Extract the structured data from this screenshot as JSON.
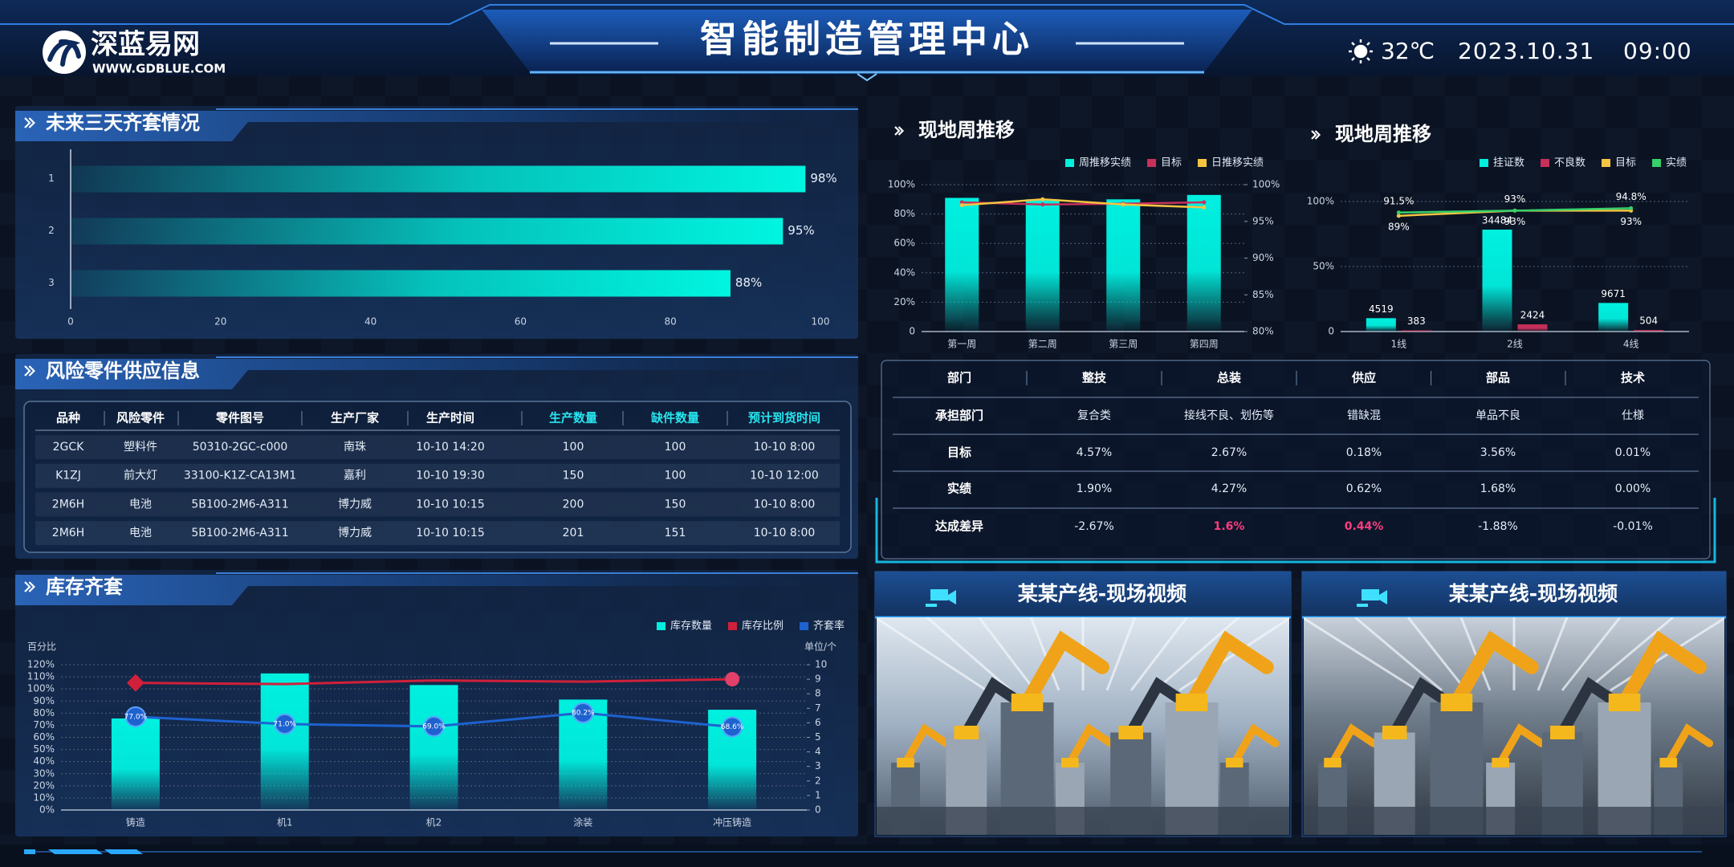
{
  "header": {
    "logo_name": "深蓝易网",
    "logo_url": "WWW.GDBLUE.COM",
    "title": "智能制造管理中心",
    "temperature": "32℃",
    "date": "2023.10.31",
    "time": "09:00"
  },
  "chart_data": [
    {
      "type": "hbar",
      "title": "未来三天齐套情况",
      "categories": [
        "1",
        "2",
        "3"
      ],
      "values": [
        98,
        95,
        88
      ],
      "value_labels": [
        "98%",
        "95%",
        "88%"
      ],
      "color": "#00f5e0",
      "xlim": [
        0,
        100
      ],
      "xticks": [
        0,
        20,
        40,
        60,
        80,
        100
      ]
    },
    {
      "type": "combo",
      "title": "现地周推移",
      "categories": [
        "第一周",
        "第二周",
        "第三周",
        "第四周"
      ],
      "series": [
        {
          "name": "周推移实绩",
          "type": "bar",
          "color": "#00f0e0",
          "values": [
            91,
            90,
            90,
            93
          ]
        },
        {
          "name": "目标",
          "type": "line",
          "axis": "y2",
          "color": "#c8305a",
          "values": [
            97.6,
            97.3,
            97.4,
            97.6
          ]
        },
        {
          "name": "日推移实绩",
          "type": "line",
          "axis": "y2",
          "color": "#f5c542",
          "values": [
            97.2,
            98.0,
            97.3,
            96.9
          ]
        }
      ],
      "ylim": [
        0,
        100
      ],
      "yticks": [
        0,
        {
          "value": 20,
          "label": "20%"
        },
        {
          "value": 40,
          "label": "40%"
        },
        {
          "value": 60,
          "label": "60%"
        },
        {
          "value": 80,
          "label": "80%"
        },
        {
          "value": 100,
          "label": "100%"
        }
      ],
      "y2lim": [
        80,
        100
      ],
      "y2ticks": [
        {
          "value": 80,
          "label": "80%"
        },
        {
          "value": 85,
          "label": "85%"
        },
        {
          "value": 90,
          "label": "90%"
        },
        {
          "value": 95,
          "label": "95%"
        },
        {
          "value": 100,
          "label": "100%"
        }
      ],
      "grid": true
    },
    {
      "type": "combo",
      "title": "现地周推移",
      "categories": [
        "1线",
        "2线",
        "4线"
      ],
      "series": [
        {
          "name": "挂证数",
          "type": "bar",
          "axis": "y2",
          "color": "#00f0e0",
          "values": [
            4519,
            34484,
            9671
          ]
        },
        {
          "name": "不良数",
          "type": "bar",
          "axis": "y2",
          "color": "#c8305a",
          "values": [
            383,
            2424,
            504
          ]
        },
        {
          "name": "目标",
          "type": "line",
          "color": "#f5c542",
          "values": [
            89,
            93,
            93
          ],
          "value_labels": [
            "89%",
            "93%",
            "93%"
          ]
        },
        {
          "name": "实绩",
          "type": "line",
          "color": "#35d06a",
          "values": [
            91.5,
            93,
            94.8
          ],
          "value_labels": [
            "91.5%",
            "93%",
            "94.8%"
          ]
        }
      ],
      "ylim": [
        0,
        100
      ],
      "yticks": [
        0,
        {
          "value": 50,
          "label": "50%"
        },
        {
          "value": 100,
          "label": "100%"
        }
      ],
      "y2lim": [
        0,
        44000
      ],
      "grid": true
    },
    {
      "type": "combo",
      "title": "库存齐套",
      "categories": [
        "铸造",
        "机1",
        "机2",
        "涂装",
        "冲压铸造"
      ],
      "series": [
        {
          "name": "库存数量",
          "type": "bar",
          "axis": "y2",
          "color": "#00f0e0",
          "values": [
            6.3,
            9.4,
            8.6,
            7.6,
            6.9
          ]
        },
        {
          "name": "库存比例",
          "type": "line",
          "color": "#d0203a",
          "values": [
            105,
            104,
            107,
            106,
            108
          ]
        },
        {
          "name": "齐套率",
          "type": "line",
          "color": "#1e62d0",
          "values": [
            77,
            71,
            69,
            80.2,
            68.6
          ],
          "value_labels": [
            "77.0%",
            "71.0%",
            "69.0%",
            "80.2%",
            "68.6%"
          ]
        }
      ],
      "ylabel": "百分比",
      "y2label": "单位/个",
      "ylim": [
        0,
        120
      ],
      "yticks": [
        {
          "value": 0,
          "label": "0%"
        },
        {
          "value": 10,
          "label": "10%"
        },
        {
          "value": 20,
          "label": "20%"
        },
        {
          "value": 30,
          "label": "30%"
        },
        {
          "value": 40,
          "label": "40%"
        },
        {
          "value": 50,
          "label": "50%"
        },
        {
          "value": 60,
          "label": "60%"
        },
        {
          "value": 70,
          "label": "70%"
        },
        {
          "value": 80,
          "label": "80%"
        },
        {
          "value": 90,
          "label": "90%"
        },
        {
          "value": 100,
          "label": "100%"
        },
        {
          "value": 110,
          "label": "110%"
        },
        {
          "value": 120,
          "label": "120%"
        }
      ],
      "y2lim": [
        0,
        10
      ],
      "y2ticks": [
        0,
        1,
        2,
        3,
        4,
        5,
        6,
        7,
        8,
        9,
        10
      ],
      "grid": true
    }
  ],
  "parts_table": {
    "title": "风险零件供应信息",
    "header": [
      "品种",
      "风险零件",
      "零件图号",
      "生产厂家",
      "生产时间",
      "生产数量",
      "缺件数量",
      "预计到货时间"
    ],
    "rows": [
      [
        "2GCK",
        "塑料件",
        "50310-2GC-c000",
        "南珠",
        "10-10  14:20",
        "100",
        "100",
        "10-10  8:00"
      ],
      [
        "K1ZJ",
        "前大灯",
        "33100-K1Z-CA13M1",
        "嘉利",
        "10-10  19:30",
        "150",
        "100",
        "10-10  12:00"
      ],
      [
        "2M6H",
        "电池",
        "5B100-2M6-A311",
        "博力威",
        "10-10  10:15",
        "200",
        "150",
        "10-10  8:00"
      ],
      [
        "2M6H",
        "电池",
        "5B100-2M6-A311",
        "博力威",
        "10-10  10:15",
        "201",
        "151",
        "10-10  8:00"
      ]
    ]
  },
  "dept_table": {
    "header": [
      "部门",
      "整技",
      "总装",
      "供应",
      "部品",
      "技术"
    ],
    "rows": [
      [
        "承担部门",
        "复合类",
        "接线不良、划伤等",
        "错缺混",
        "单品不良",
        "仕様"
      ],
      [
        "目标",
        "4.57%",
        "2.67%",
        "0.18%",
        "3.56%",
        "0.01%"
      ],
      [
        "实绩",
        "1.90%",
        "4.27%",
        "0.62%",
        "1.68%",
        "0.00%"
      ],
      [
        "达成差异",
        "-2.67%",
        "1.6%",
        "0.44%",
        "-1.88%",
        "-0.01%"
      ]
    ]
  },
  "videos": [
    {
      "title": "某某产线-现场视频"
    },
    {
      "title": "某某产线-现场视频"
    }
  ]
}
